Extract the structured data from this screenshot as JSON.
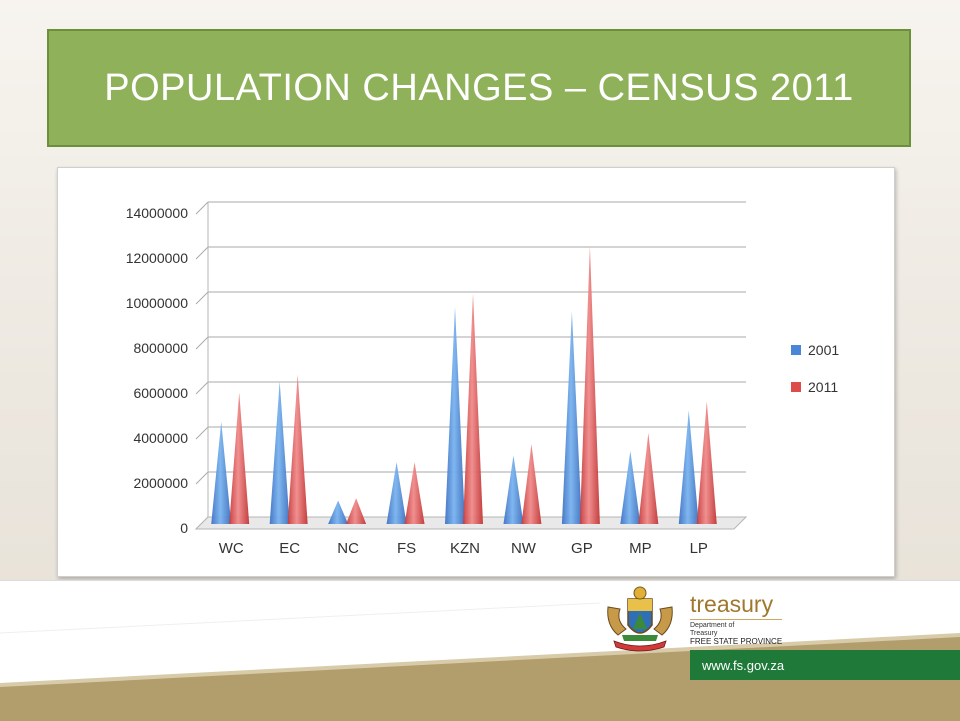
{
  "slide": {
    "title": "POPULATION CHANGES – CENSUS 2011"
  },
  "colors": {
    "title_bg": "#8fb15a",
    "series_2001": "#4a86d8",
    "series_2011": "#dd4b4b",
    "footer_green": "#1f7a3a",
    "footer_tan": "#b29d6c"
  },
  "chart_data": {
    "type": "bar",
    "categories": [
      "WC",
      "EC",
      "NC",
      "FS",
      "KZN",
      "NW",
      "GP",
      "MP",
      "LP"
    ],
    "series": [
      {
        "name": "2001",
        "values": [
          4500000,
          6300000,
          1000000,
          2700000,
          9600000,
          3000000,
          9400000,
          3200000,
          5000000
        ]
      },
      {
        "name": "2011",
        "values": [
          5800000,
          6600000,
          1100000,
          2700000,
          10200000,
          3500000,
          12300000,
          4000000,
          5400000
        ]
      }
    ],
    "y_ticks": [
      "0",
      "2000000",
      "4000000",
      "6000000",
      "8000000",
      "10000000",
      "12000000",
      "14000000"
    ],
    "ylim": [
      0,
      14000000
    ],
    "grid": true,
    "legend": "right",
    "title": "",
    "xlabel": "",
    "ylabel": ""
  },
  "footer": {
    "brand_name": "treasury",
    "dept_line1": "Department of",
    "dept_line2": "Treasury",
    "dept_line3": "FREE STATE PROVINCE",
    "url": "www.fs.gov.za"
  }
}
